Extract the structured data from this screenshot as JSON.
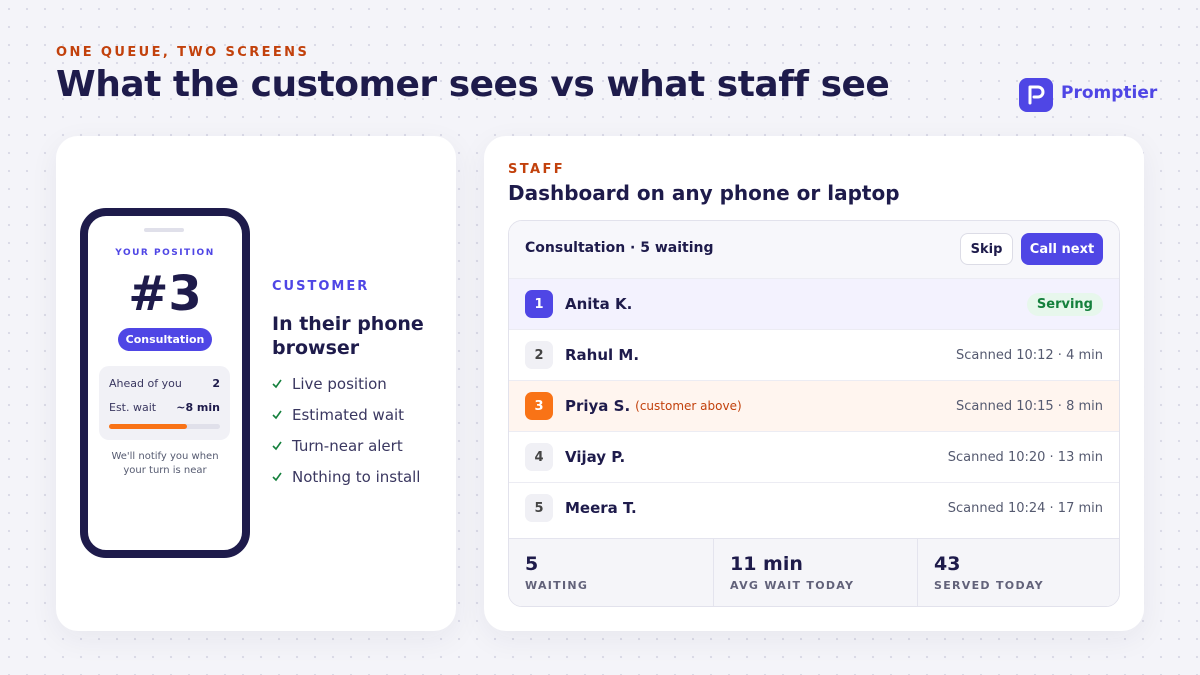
{
  "header": {
    "eyebrow": "ONE QUEUE, TWO SCREENS",
    "title": "What the customer sees vs what staff see",
    "brand": "Promptier"
  },
  "customer": {
    "phone": {
      "label": "YOUR POSITION",
      "position": "#3",
      "service": "Consultation",
      "rows": [
        {
          "label": "Ahead of you",
          "value": "2"
        },
        {
          "label": "Est. wait",
          "value": "~8 min"
        }
      ],
      "note": "We'll notify you when your turn is near"
    },
    "eyebrow": "CUSTOMER",
    "title": "In their phone browser",
    "features": [
      "Live position",
      "Estimated wait",
      "Turn-near alert",
      "Nothing to install"
    ]
  },
  "staff": {
    "eyebrow": "STAFF",
    "title": "Dashboard on any phone or laptop",
    "queue": {
      "title": "Consultation · 5 waiting",
      "buttons": [
        "Skip",
        "Call next"
      ],
      "rows": [
        {
          "number": "1",
          "name": "Anita K.",
          "status": "Serving"
        },
        {
          "number": "2",
          "name": "Rahul M.",
          "status": "Scanned 10:12 · 4 min"
        },
        {
          "number": "3",
          "name": "Priya S.",
          "note": "(customer above)",
          "status": "Scanned 10:15 · 8 min"
        },
        {
          "number": "4",
          "name": "Vijay P.",
          "status": "Scanned 10:20 · 13 min"
        },
        {
          "number": "5",
          "name": "Meera T.",
          "status": "Scanned 10:24 · 17 min"
        }
      ],
      "stats": [
        {
          "value": "5",
          "label": "WAITING"
        },
        {
          "value": "11 min",
          "label": "AVG WAIT TODAY"
        },
        {
          "value": "43",
          "label": "SERVED TODAY"
        }
      ]
    }
  }
}
